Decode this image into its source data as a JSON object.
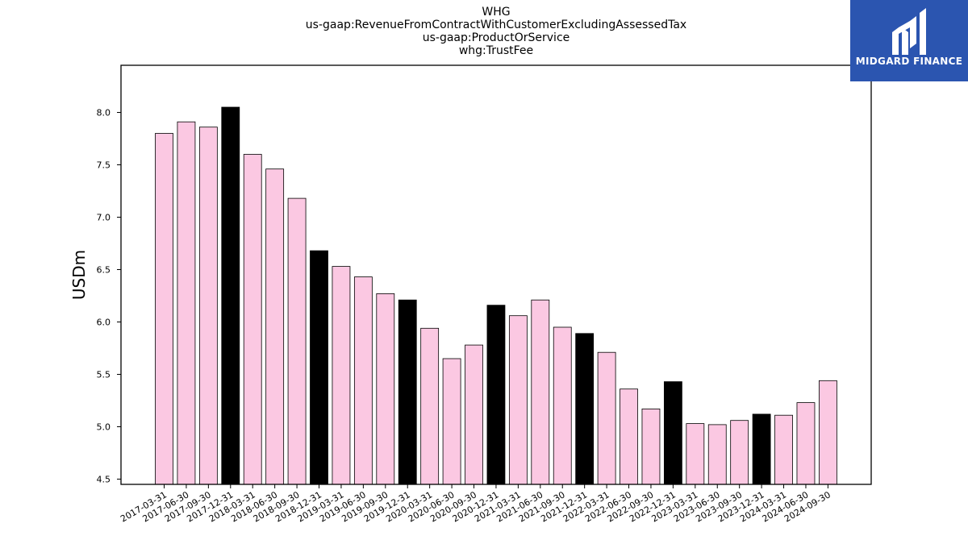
{
  "titles": [
    "WHG",
    "us-gaap:RevenueFromContractWithCustomerExcludingAssessedTax",
    "us-gaap:ProductOrService",
    "whg:TrustFee"
  ],
  "logo": {
    "text": "MIDGARD FINANCE",
    "icon": "midgard-logo-icon"
  },
  "colors": {
    "bar_default": "#fbc8e2",
    "bar_highlight": "#000000",
    "logo_bg": "#2b55b0"
  },
  "chart_data": {
    "type": "bar",
    "ylabel": "USDm",
    "xlabel": "",
    "ylim": [
      4.45,
      8.45
    ],
    "yticks": [
      4.5,
      5.0,
      5.5,
      6.0,
      6.5,
      7.0,
      7.5,
      8.0
    ],
    "ytick_labels": [
      "4.5",
      "5.0",
      "5.5",
      "6.0",
      "6.5",
      "7.0",
      "7.5",
      "8.0"
    ],
    "grid": false,
    "categories": [
      "2017-03-31",
      "2017-06-30",
      "2017-09-30",
      "2017-12-31",
      "2018-03-31",
      "2018-06-30",
      "2018-09-30",
      "2018-12-31",
      "2019-03-31",
      "2019-06-30",
      "2019-09-30",
      "2019-12-31",
      "2020-03-31",
      "2020-06-30",
      "2020-09-30",
      "2020-12-31",
      "2021-03-31",
      "2021-06-30",
      "2021-09-30",
      "2021-12-31",
      "2022-03-31",
      "2022-06-30",
      "2022-09-30",
      "2022-12-31",
      "2023-03-31",
      "2023-06-30",
      "2023-09-30",
      "2023-12-31",
      "2024-03-31",
      "2024-06-30",
      "2024-09-30"
    ],
    "values": [
      7.8,
      7.91,
      7.86,
      8.05,
      7.6,
      7.46,
      7.18,
      6.68,
      6.53,
      6.43,
      6.27,
      6.21,
      5.94,
      5.65,
      5.78,
      6.16,
      6.06,
      6.21,
      5.95,
      5.89,
      5.71,
      5.36,
      5.17,
      5.43,
      5.03,
      5.02,
      5.06,
      5.12,
      5.11,
      5.23,
      5.44
    ],
    "highlight": [
      false,
      false,
      false,
      true,
      false,
      false,
      false,
      true,
      false,
      false,
      false,
      true,
      false,
      false,
      false,
      true,
      false,
      false,
      false,
      true,
      false,
      false,
      false,
      true,
      false,
      false,
      false,
      true,
      false,
      false,
      false
    ]
  }
}
